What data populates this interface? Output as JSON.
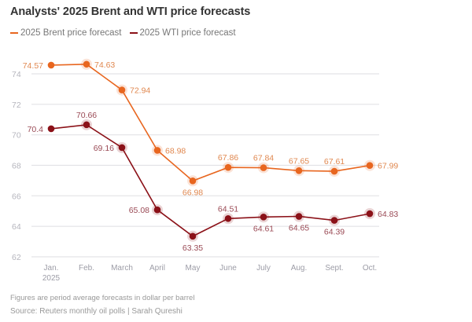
{
  "header": {
    "title": "Analysts' 2025 Brent and WTI price forecasts"
  },
  "legend": {
    "items": [
      {
        "label": "2025 Brent price forecast",
        "color": "#E8661F"
      },
      {
        "label": "2025 WTI price forecast",
        "color": "#8B1118"
      }
    ]
  },
  "footer": {
    "note": "Figures are period average forecasts in dollar per barrel",
    "source": "Source: Reuters monthly oil polls | Sarah Qureshi"
  },
  "chart_data": {
    "type": "line",
    "title": "Analysts' 2025 Brent and WTI price forecasts",
    "xlabel": "",
    "ylabel": "",
    "categories": [
      "Jan.\n2025",
      "Feb.",
      "March",
      "April",
      "May",
      "June",
      "July",
      "Aug.",
      "Sept.",
      "Oct."
    ],
    "ylim": [
      62,
      75
    ],
    "yticks": [
      62,
      64,
      66,
      68,
      70,
      72,
      74
    ],
    "grid": true,
    "legend_position": "top-left",
    "series": [
      {
        "name": "2025 Brent price forecast",
        "color": "#E8661F",
        "label_color": "#E08850",
        "values": [
          74.57,
          74.63,
          72.94,
          68.98,
          66.98,
          67.86,
          67.84,
          67.65,
          67.61,
          67.99
        ],
        "labels": [
          "74.57",
          "74.63",
          "72.94",
          "68.98",
          "66.98",
          "67.86",
          "67.84",
          "67.65",
          "67.61",
          "67.99"
        ],
        "label_pos": [
          "left",
          "right",
          "right",
          "right",
          "below",
          "above",
          "above",
          "above",
          "above",
          "right"
        ]
      },
      {
        "name": "2025 WTI price forecast",
        "color": "#8B1118",
        "label_color": "#9A4A55",
        "values": [
          70.4,
          70.66,
          69.16,
          65.08,
          63.35,
          64.51,
          64.61,
          64.65,
          64.39,
          64.83
        ],
        "labels": [
          "70.4",
          "70.66",
          "69.16",
          "65.08",
          "63.35",
          "64.51",
          "64.61",
          "64.65",
          "64.39",
          "64.83"
        ],
        "label_pos": [
          "left",
          "above",
          "left",
          "left",
          "below",
          "above",
          "below",
          "below",
          "below",
          "right"
        ]
      }
    ]
  }
}
